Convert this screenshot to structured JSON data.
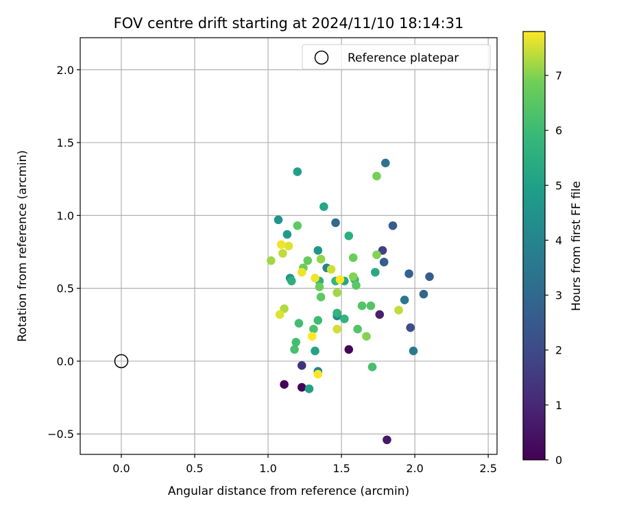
{
  "chart_data": {
    "type": "scatter",
    "title": "FOV centre drift starting at 2024/11/10 18:14:31",
    "xlabel": "Angular distance from reference (arcmin)",
    "ylabel": "Rotation from reference (arcmin)",
    "xlim": [
      -0.28,
      2.56
    ],
    "ylim": [
      -0.64,
      2.22
    ],
    "xticks": [
      0.0,
      0.5,
      1.0,
      1.5,
      2.0,
      2.5
    ],
    "xtick_labels": [
      "0.0",
      "0.5",
      "1.0",
      "1.5",
      "2.0",
      "2.5"
    ],
    "yticks": [
      -0.5,
      0.0,
      0.5,
      1.0,
      1.5,
      2.0
    ],
    "ytick_labels": [
      "−0.5",
      "0.0",
      "0.5",
      "1.0",
      "1.5",
      "2.0"
    ],
    "grid": true,
    "legend": {
      "position": "top-right",
      "entries": [
        "Reference platepar"
      ]
    },
    "reference_point": {
      "x": 0.0,
      "y": 0.0,
      "marker": "open-circle",
      "label": "Reference platepar"
    },
    "colorbar": {
      "label": "Hours from first FF file",
      "range": [
        0,
        7.8
      ],
      "ticks": [
        0,
        1,
        2,
        3,
        4,
        5,
        6,
        7
      ],
      "tick_labels": [
        "0",
        "1",
        "2",
        "3",
        "4",
        "5",
        "6",
        "7"
      ],
      "colormap": "viridis"
    },
    "points": [
      {
        "x": 1.11,
        "y": -0.16,
        "t": 0.1
      },
      {
        "x": 1.23,
        "y": -0.18,
        "t": 0.1
      },
      {
        "x": 1.55,
        "y": 0.08,
        "t": 0.1
      },
      {
        "x": 1.81,
        "y": -0.54,
        "t": 0.6
      },
      {
        "x": 1.76,
        "y": 0.32,
        "t": 0.8
      },
      {
        "x": 1.23,
        "y": -0.03,
        "t": 1.3
      },
      {
        "x": 1.78,
        "y": 0.76,
        "t": 1.7
      },
      {
        "x": 1.97,
        "y": 0.23,
        "t": 2.1
      },
      {
        "x": 1.85,
        "y": 0.93,
        "t": 2.6
      },
      {
        "x": 2.1,
        "y": 0.58,
        "t": 2.6
      },
      {
        "x": 1.79,
        "y": 0.68,
        "t": 2.6
      },
      {
        "x": 1.96,
        "y": 0.6,
        "t": 2.8
      },
      {
        "x": 2.06,
        "y": 0.46,
        "t": 2.9
      },
      {
        "x": 1.46,
        "y": 0.95,
        "t": 3.0
      },
      {
        "x": 1.8,
        "y": 1.36,
        "t": 3.4
      },
      {
        "x": 1.93,
        "y": 0.42,
        "t": 3.5
      },
      {
        "x": 1.99,
        "y": 0.07,
        "t": 3.6
      },
      {
        "x": 1.34,
        "y": -0.07,
        "t": 3.9
      },
      {
        "x": 1.4,
        "y": 0.64,
        "t": 4.0
      },
      {
        "x": 1.47,
        "y": 0.31,
        "t": 4.1
      },
      {
        "x": 1.07,
        "y": 0.97,
        "t": 4.6
      },
      {
        "x": 1.34,
        "y": 0.76,
        "t": 4.6
      },
      {
        "x": 1.15,
        "y": 0.57,
        "t": 4.7
      },
      {
        "x": 1.13,
        "y": 0.87,
        "t": 4.8
      },
      {
        "x": 1.2,
        "y": 1.3,
        "t": 5.0
      },
      {
        "x": 1.28,
        "y": -0.19,
        "t": 5.0
      },
      {
        "x": 1.32,
        "y": 0.07,
        "t": 5.1
      },
      {
        "x": 1.38,
        "y": 1.06,
        "t": 5.2
      },
      {
        "x": 1.52,
        "y": 0.55,
        "t": 5.2
      },
      {
        "x": 1.73,
        "y": 0.61,
        "t": 5.3
      },
      {
        "x": 1.55,
        "y": 0.86,
        "t": 5.5
      },
      {
        "x": 1.16,
        "y": 0.55,
        "t": 5.5
      },
      {
        "x": 1.35,
        "y": 0.55,
        "t": 5.6
      },
      {
        "x": 1.47,
        "y": 0.33,
        "t": 5.7
      },
      {
        "x": 1.52,
        "y": 0.29,
        "t": 5.7
      },
      {
        "x": 1.46,
        "y": 0.55,
        "t": 5.8
      },
      {
        "x": 1.59,
        "y": 0.56,
        "t": 5.8
      },
      {
        "x": 1.34,
        "y": 0.28,
        "t": 6.0
      },
      {
        "x": 1.21,
        "y": 0.26,
        "t": 6.1
      },
      {
        "x": 1.19,
        "y": 0.13,
        "t": 6.1
      },
      {
        "x": 1.18,
        "y": 0.08,
        "t": 6.2
      },
      {
        "x": 1.31,
        "y": 0.22,
        "t": 6.3
      },
      {
        "x": 1.71,
        "y": -0.04,
        "t": 6.2
      },
      {
        "x": 1.61,
        "y": 0.22,
        "t": 6.4
      },
      {
        "x": 1.64,
        "y": 0.38,
        "t": 6.4
      },
      {
        "x": 1.7,
        "y": 0.38,
        "t": 6.4
      },
      {
        "x": 1.6,
        "y": 0.52,
        "t": 6.5
      },
      {
        "x": 1.36,
        "y": 0.44,
        "t": 6.6
      },
      {
        "x": 1.2,
        "y": 0.93,
        "t": 6.6
      },
      {
        "x": 1.27,
        "y": 0.69,
        "t": 6.7
      },
      {
        "x": 1.24,
        "y": 0.64,
        "t": 6.8
      },
      {
        "x": 1.35,
        "y": 0.51,
        "t": 6.8
      },
      {
        "x": 1.58,
        "y": 0.71,
        "t": 6.8
      },
      {
        "x": 1.74,
        "y": 1.27,
        "t": 6.9
      },
      {
        "x": 1.74,
        "y": 0.73,
        "t": 7.0
      },
      {
        "x": 1.58,
        "y": 0.58,
        "t": 7.0
      },
      {
        "x": 1.67,
        "y": 0.17,
        "t": 7.0
      },
      {
        "x": 1.36,
        "y": 0.7,
        "t": 7.1
      },
      {
        "x": 1.47,
        "y": 0.47,
        "t": 7.2
      },
      {
        "x": 1.02,
        "y": 0.69,
        "t": 7.2
      },
      {
        "x": 1.11,
        "y": 0.36,
        "t": 7.3
      },
      {
        "x": 1.89,
        "y": 0.35,
        "t": 7.4
      },
      {
        "x": 1.1,
        "y": 0.74,
        "t": 7.4
      },
      {
        "x": 1.43,
        "y": 0.63,
        "t": 7.5
      },
      {
        "x": 1.47,
        "y": 0.22,
        "t": 7.5
      },
      {
        "x": 1.08,
        "y": 0.32,
        "t": 7.6
      },
      {
        "x": 1.14,
        "y": 0.79,
        "t": 7.6
      },
      {
        "x": 1.09,
        "y": 0.8,
        "t": 7.7
      },
      {
        "x": 1.23,
        "y": 0.61,
        "t": 7.7
      },
      {
        "x": 1.32,
        "y": 0.57,
        "t": 7.7
      },
      {
        "x": 1.49,
        "y": 0.56,
        "t": 7.8
      },
      {
        "x": 1.3,
        "y": 0.17,
        "t": 7.8
      },
      {
        "x": 1.34,
        "y": -0.09,
        "t": 7.8
      }
    ]
  }
}
